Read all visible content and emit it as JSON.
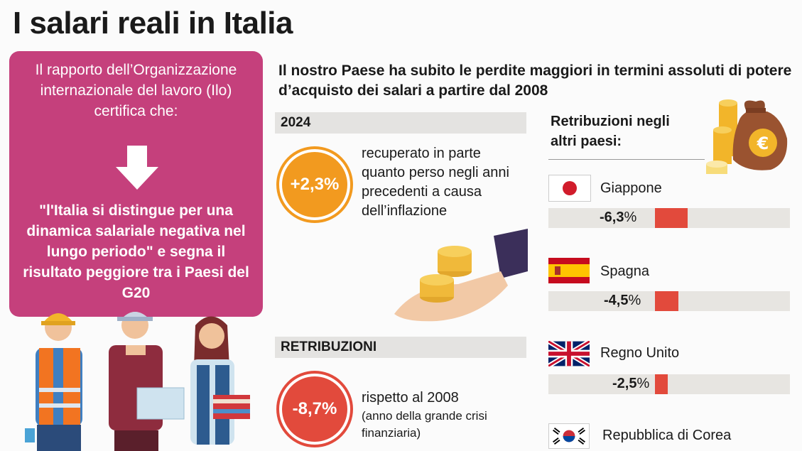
{
  "title": "I salari reali in Italia",
  "pink_box": {
    "intro": "Il rapporto dell’Organizzazione internazionale del lavoro (Ilo) certifica che:",
    "quote": "\"l'Italia si distingue per una dinamica salariale negativa nel lungo periodo\" e segna il risultato peggiore tra i Paesi del G20"
  },
  "headline": "Il nostro Paese ha subito le perdite maggiori in termini assoluti di potere d’acquisto dei salari a partire dal 2008",
  "section_2024": {
    "label": "2024",
    "value": "+2,3%",
    "description": "recuperato in parte quanto perso negli anni precedenti a causa dell’inflazione"
  },
  "section_retribuzioni": {
    "label": "RETRIBUZIONI",
    "value": "-8,7%",
    "description_main": "rispetto al 2008",
    "description_note": "(anno della grande crisi finanziaria)"
  },
  "other_countries": {
    "title": "Retribuzioni negli altri paesi:",
    "items": [
      {
        "name": "Giappone",
        "value_num": "-6,3",
        "value_unit": "%",
        "value": -6.3
      },
      {
        "name": "Spagna",
        "value_num": "-4,5",
        "value_unit": "%",
        "value": -4.5
      },
      {
        "name": "Regno Unito",
        "value_num": "-2,5",
        "value_unit": "%",
        "value": -2.5
      },
      {
        "name": "Repubblica di Corea"
      }
    ]
  },
  "colors": {
    "pink": "#c5407c",
    "orange": "#f29a1f",
    "red": "#e24a3c",
    "band": "#e4e3e1"
  },
  "icons": [
    "down-arrow-icon",
    "money-bag-icon",
    "coins-hand-icon",
    "workers-illustration"
  ]
}
